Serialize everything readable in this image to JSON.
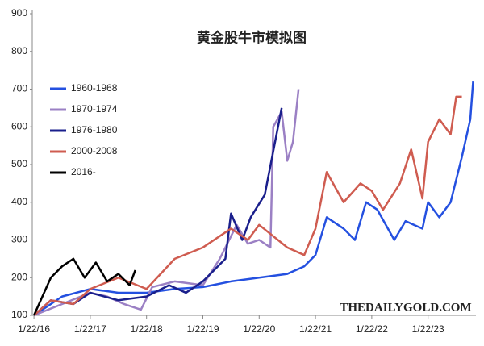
{
  "chart_data": {
    "type": "line",
    "title": "黄金股牛市模拟图",
    "watermark": "THEDAILYGOLD.COM",
    "xlim": [
      2015.97,
      2023.85
    ],
    "ylim": [
      100,
      900
    ],
    "xticks": [
      {
        "value": 2016,
        "label": "1/22/16"
      },
      {
        "value": 2017,
        "label": "1/22/17"
      },
      {
        "value": 2018,
        "label": "1/22/18"
      },
      {
        "value": 2019,
        "label": "1/22/19"
      },
      {
        "value": 2020,
        "label": "1/22/20"
      },
      {
        "value": 2021,
        "label": "1/22/21"
      },
      {
        "value": 2022,
        "label": "1/22/22"
      },
      {
        "value": 2023,
        "label": "1/22/23"
      }
    ],
    "yticks": [
      100,
      200,
      300,
      400,
      500,
      600,
      700,
      800,
      900
    ],
    "grid": false,
    "series": [
      {
        "name": "1960-1968",
        "color": "#2450e0",
        "x": [
          2016,
          2016.5,
          2017,
          2017.5,
          2018,
          2018.5,
          2019,
          2019.5,
          2020,
          2020.5,
          2020.8,
          2021,
          2021.2,
          2021.5,
          2021.7,
          2021.9,
          2022.1,
          2022.4,
          2022.6,
          2022.9,
          2023,
          2023.2,
          2023.4,
          2023.6,
          2023.75,
          2023.8
        ],
        "values": [
          100,
          150,
          170,
          160,
          160,
          170,
          175,
          190,
          200,
          210,
          230,
          260,
          360,
          330,
          300,
          400,
          380,
          300,
          350,
          330,
          400,
          360,
          400,
          520,
          620,
          720
        ]
      },
      {
        "name": "1970-1974",
        "color": "#9b80c4",
        "x": [
          2016,
          2016.5,
          2017,
          2017.3,
          2017.6,
          2017.9,
          2018.1,
          2018.5,
          2019,
          2019.3,
          2019.6,
          2019.8,
          2020,
          2020.2,
          2020.25,
          2020.4,
          2020.5,
          2020.6,
          2020.7
        ],
        "values": [
          100,
          130,
          160,
          150,
          130,
          115,
          175,
          190,
          180,
          250,
          340,
          290,
          300,
          280,
          600,
          640,
          510,
          560,
          700
        ]
      },
      {
        "name": "1976-1980",
        "color": "#1a1f8c",
        "x": [
          2016,
          2016.3,
          2016.7,
          2017,
          2017.5,
          2018,
          2018.4,
          2018.7,
          2019,
          2019.4,
          2019.5,
          2019.7,
          2019.85,
          2020.1,
          2020.4
        ],
        "values": [
          100,
          140,
          130,
          160,
          140,
          150,
          180,
          160,
          190,
          250,
          370,
          300,
          360,
          420,
          650
        ]
      },
      {
        "name": "2000-2008",
        "color": "#cf5c50",
        "x": [
          2016,
          2016.3,
          2016.7,
          2017,
          2017.5,
          2018,
          2018.5,
          2019,
          2019.5,
          2019.8,
          2020,
          2020.5,
          2020.8,
          2021,
          2021.2,
          2021.5,
          2021.8,
          2022,
          2022.2,
          2022.5,
          2022.7,
          2022.9,
          2023,
          2023.2,
          2023.4,
          2023.5,
          2023.6
        ],
        "values": [
          100,
          140,
          130,
          170,
          200,
          170,
          250,
          280,
          330,
          300,
          340,
          280,
          260,
          330,
          480,
          400,
          450,
          430,
          380,
          450,
          540,
          410,
          560,
          620,
          580,
          680,
          680
        ]
      },
      {
        "name": "2016-",
        "color": "#000000",
        "x": [
          2016,
          2016.3,
          2016.5,
          2016.7,
          2016.9,
          2017.1,
          2017.3,
          2017.5,
          2017.7,
          2017.8
        ],
        "values": [
          100,
          200,
          230,
          250,
          200,
          240,
          190,
          210,
          180,
          220
        ]
      }
    ]
  }
}
